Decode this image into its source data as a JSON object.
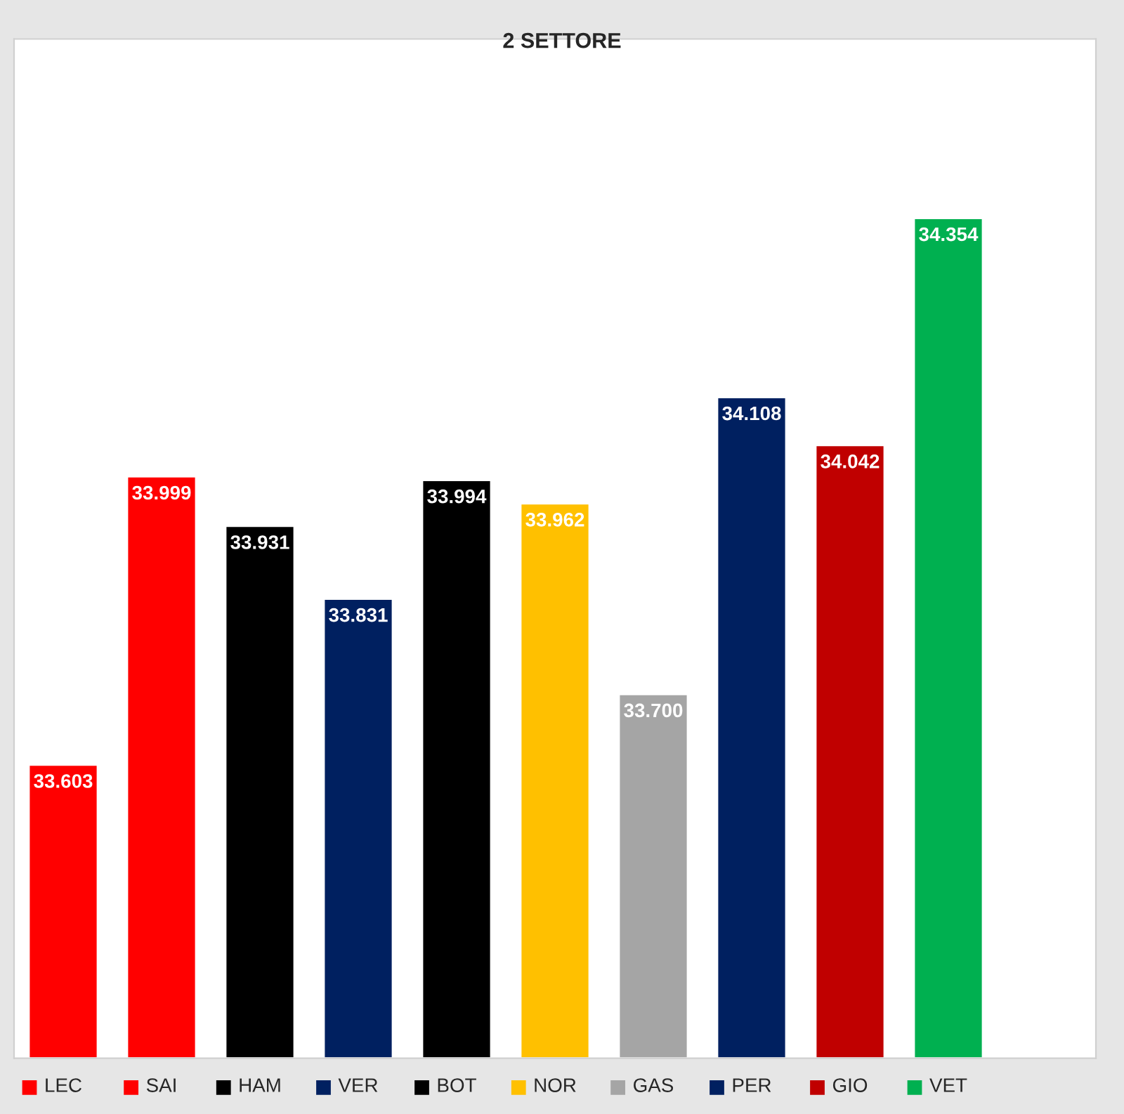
{
  "chart_data": {
    "type": "bar",
    "title": "2 SETTORE",
    "categories": [
      "LEC",
      "SAI",
      "HAM",
      "VER",
      "BOT",
      "NOR",
      "GAS",
      "PER",
      "GIO",
      "VET"
    ],
    "values": [
      33.603,
      33.999,
      33.931,
      33.831,
      33.994,
      33.962,
      33.7,
      34.108,
      34.042,
      34.354
    ],
    "value_labels": [
      "33.603",
      "33.999",
      "33.931",
      "33.831",
      "33.994",
      "33.962",
      "33.700",
      "34.108",
      "34.042",
      "34.354"
    ],
    "colors": [
      "#ff0000",
      "#ff0000",
      "#000000",
      "#002060",
      "#000000",
      "#ffc000",
      "#a5a5a5",
      "#002060",
      "#c00000",
      "#00b050"
    ],
    "ylim": [
      33.2,
      34.6
    ],
    "grid": false
  }
}
